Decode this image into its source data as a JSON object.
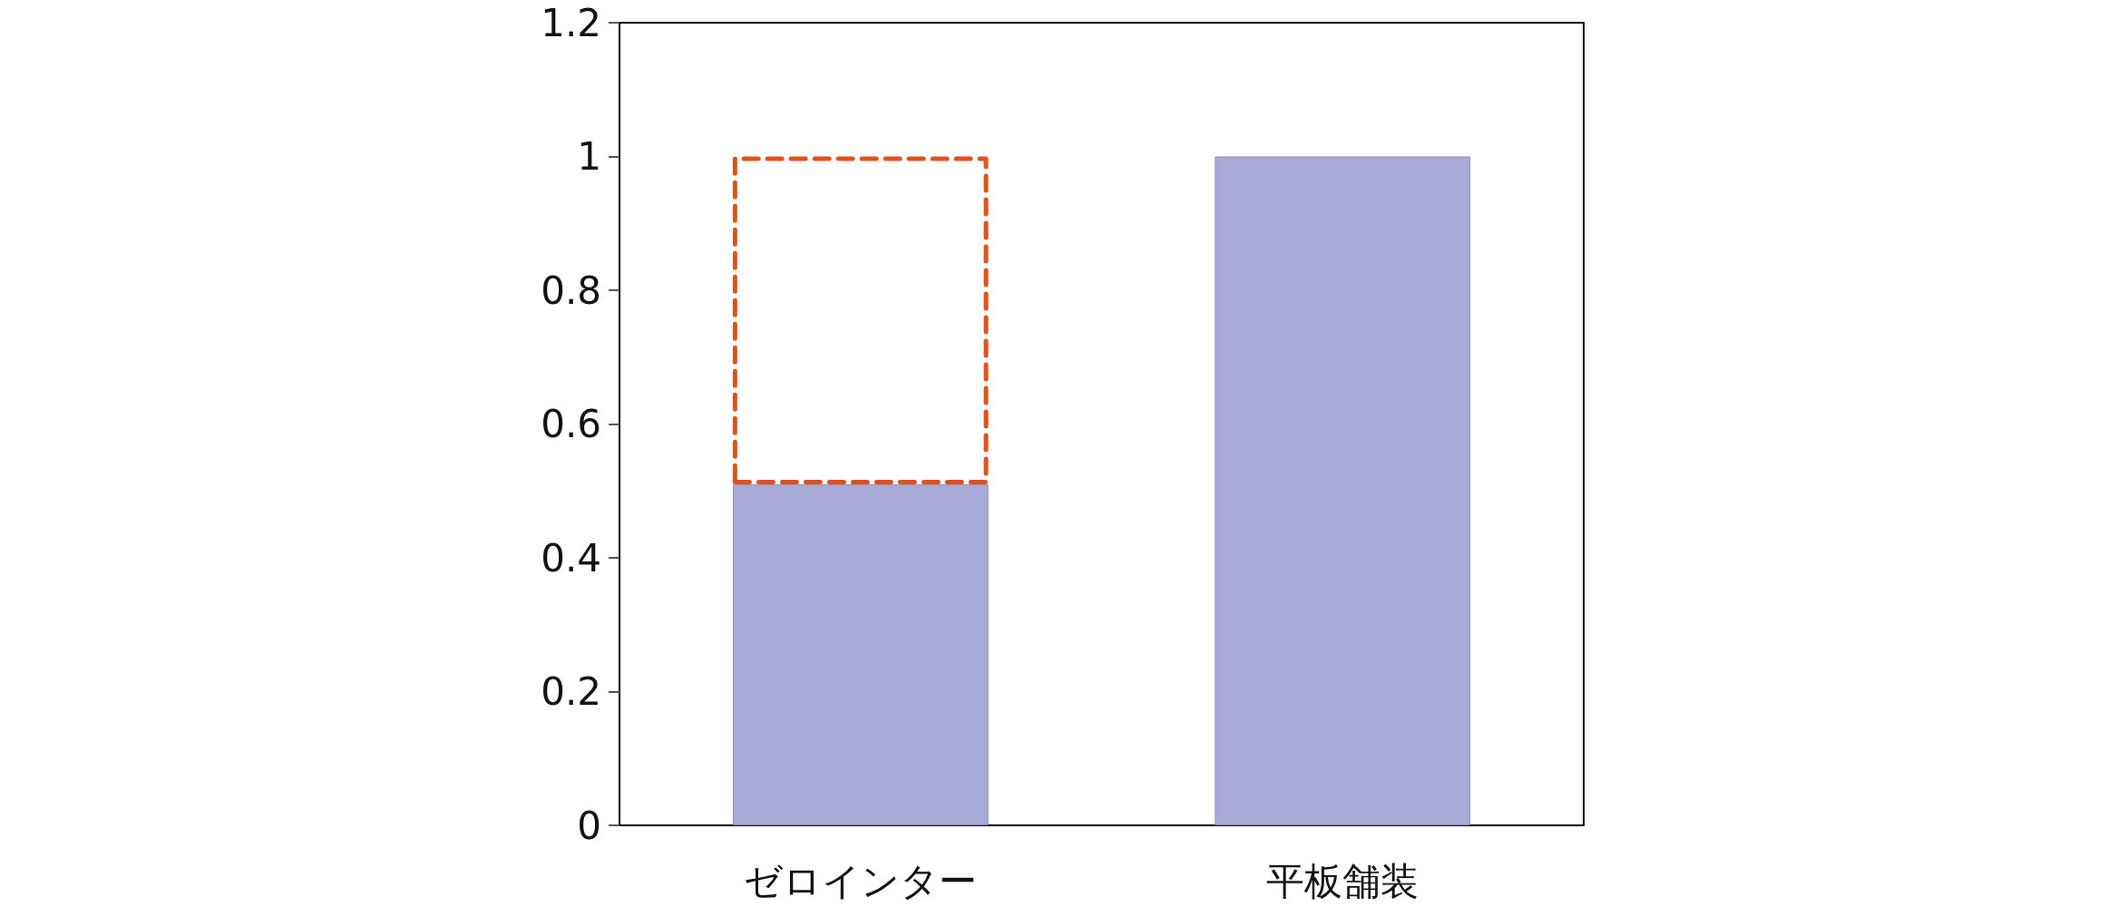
{
  "chart_data": {
    "type": "bar",
    "categories": [
      "ゼロインター",
      "平板舗装"
    ],
    "stacked": true,
    "series": [
      {
        "color": "#a8aad6",
        "values": [
          0.51,
          1.0
        ]
      },
      {
        "color": "#e2511c",
        "line_style": "dashed",
        "values": [
          0.49,
          null
        ]
      }
    ],
    "ylim": [
      0,
      1.2
    ],
    "yticks": [
      0,
      0.2,
      0.4,
      0.6,
      0.8,
      1,
      1.2
    ],
    "grid": false
  }
}
